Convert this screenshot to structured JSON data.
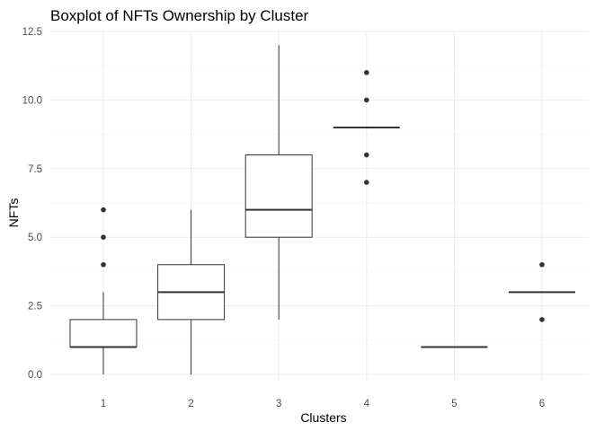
{
  "chart_data": {
    "type": "boxplot",
    "title": "Boxplot of NFTs Ownership by Cluster",
    "xlabel": "Clusters",
    "ylabel": "NFTs",
    "categories": [
      "1",
      "2",
      "3",
      "4",
      "5",
      "6"
    ],
    "ylim": [
      -0.35,
      12.5
    ],
    "yticks": [
      0.0,
      2.5,
      5.0,
      7.5,
      10.0,
      12.5
    ],
    "ytick_labels": [
      "0.0",
      "2.5",
      "5.0",
      "7.5",
      "10.0",
      "12.5"
    ],
    "grid": true,
    "boxes": [
      {
        "category": "1",
        "min": 0,
        "q1": 1,
        "median": 1,
        "q3": 2,
        "max": 3,
        "outliers": [
          4,
          5,
          6
        ]
      },
      {
        "category": "2",
        "min": 0,
        "q1": 2,
        "median": 3,
        "q3": 4,
        "max": 6,
        "outliers": []
      },
      {
        "category": "3",
        "min": 2,
        "q1": 5,
        "median": 6,
        "q3": 8,
        "max": 12,
        "outliers": []
      },
      {
        "category": "4",
        "min": 9,
        "q1": 9,
        "median": 9,
        "q3": 9,
        "max": 9,
        "outliers": [
          7,
          8,
          10,
          11
        ]
      },
      {
        "category": "5",
        "min": 1,
        "q1": 1,
        "median": 1,
        "q3": 1,
        "max": 1,
        "outliers": []
      },
      {
        "category": "6",
        "min": 3,
        "q1": 3,
        "median": 3,
        "q3": 3,
        "max": 3,
        "outliers": [
          2,
          4
        ]
      }
    ]
  }
}
